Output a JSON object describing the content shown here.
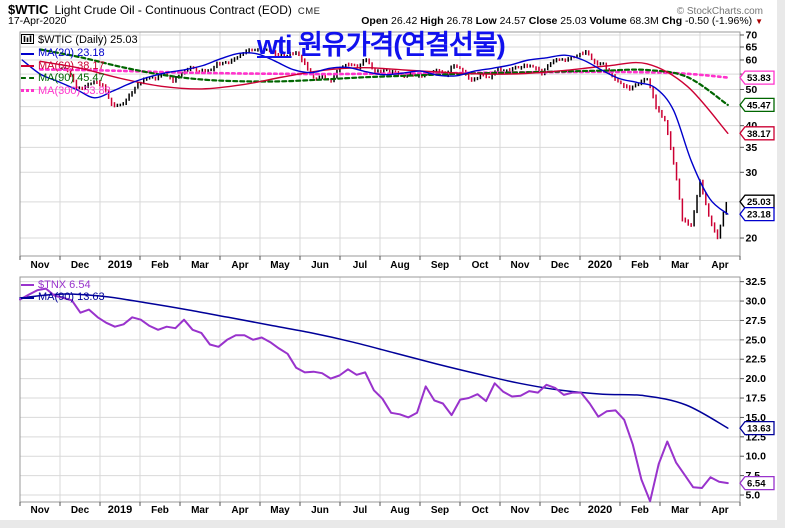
{
  "header": {
    "symbol": "$WTIC",
    "name": "Light Crude Oil - Continuous Contract (EOD)",
    "exchange": "CME",
    "date": "17-Apr-2020",
    "copyright": "© StockCharts.com",
    "quote": [
      {
        "label": "Open",
        "value": "26.42"
      },
      {
        "label": "High",
        "value": "26.78"
      },
      {
        "label": "Low",
        "value": "24.57"
      },
      {
        "label": "Close",
        "value": "25.03"
      },
      {
        "label": "Volume",
        "value": "68.3M"
      },
      {
        "label": "Chg",
        "value": "-0.50 (-1.96%)",
        "direction": "down"
      }
    ]
  },
  "annotation": {
    "text": "wti 원유가격(연결선물)",
    "color": "#1111ee"
  },
  "colors": {
    "grid": "#d9d9d9",
    "border": "#999999",
    "candle_up": "#000000",
    "candle_down": "#cc0033",
    "page_margin": "#e9e9e9"
  },
  "chart_data": [
    {
      "type": "candlestick",
      "title": "$WTIC (Daily) 25.03",
      "scale": "log",
      "ylim": [
        17.9,
        71.3
      ],
      "yticks": [
        20,
        25,
        30,
        35,
        40,
        45,
        50,
        55,
        60,
        65,
        70
      ],
      "ytick_decimals": 0,
      "x_labels": [
        "Nov",
        "Dec",
        "2019",
        "Feb",
        "Mar",
        "Apr",
        "May",
        "Jun",
        "Jul",
        "Aug",
        "Sep",
        "Oct",
        "Nov",
        "Dec",
        "2020",
        "Feb",
        "Mar",
        "Apr"
      ],
      "legend": [
        {
          "label": "$WTIC (Daily) 25.03",
          "color": "#000000",
          "swatch": "icon"
        },
        {
          "label": "MA(20) 23.18",
          "color": "#0000cc",
          "swatch": "line"
        },
        {
          "label": "MA(60) 38.17",
          "color": "#cc0033",
          "swatch": "line"
        },
        {
          "label": "MA(90) 45.47",
          "color": "#006600",
          "swatch": "dash"
        },
        {
          "label": "MA(300) 53.83",
          "color": "#ff33cc",
          "swatch": "dots"
        }
      ],
      "series": [
        {
          "name": "wtic-price-weekly-close",
          "kind": "candles",
          "color_up": "#000000",
          "color_down": "#cc0033",
          "xfrac": [
            0.056,
            0.983
          ],
          "values": [
            57,
            56.5,
            50.4,
            50.9,
            52.6,
            51.2,
            45.6,
            45.3,
            48,
            51.6,
            53.8,
            53.7,
            55.3,
            52.7,
            55.6,
            57.3,
            55.8,
            56.1,
            58.5,
            59,
            60.1,
            63.1,
            63.9,
            64,
            63.3,
            61.9,
            61.7,
            62.8,
            58.6,
            53.5,
            54,
            52.5,
            57.4,
            58.5,
            57.5,
            60.2,
            55.6,
            56.2,
            55.7,
            54.5,
            54.9,
            54.2,
            55.1,
            56.5,
            54.9,
            58.1,
            55.9,
            52.8,
            54.7,
            53.8,
            56.7,
            56.2,
            57.2,
            57.7,
            57.8,
            55.2,
            59.2,
            60.1,
            60.4,
            61.7,
            63.1,
            59,
            58.5,
            54.2,
            51.6,
            50.3,
            52.1,
            53.4,
            44.8,
            41.3,
            31.7,
            22.4,
            21.5,
            28.3,
            22.8,
            19.9,
            25.03
          ]
        },
        {
          "name": "ma300",
          "kind": "line",
          "color": "#ff33cc",
          "width": 2.6,
          "dash": "2.5,3.5",
          "smooth": true,
          "xfrac": [
            0.028,
            0.983
          ],
          "values": [
            56.6,
            56.4,
            56.1,
            55.7,
            55.4,
            55.2,
            55.1,
            55,
            55.1,
            55.2,
            55.3,
            55.45,
            55.6,
            55.7,
            55.75,
            55.6,
            55.1,
            53.83
          ]
        },
        {
          "name": "ma90",
          "kind": "line",
          "color": "#006600",
          "width": 2.2,
          "dash": "4,3",
          "smooth": true,
          "xfrac": [
            0.028,
            0.983
          ],
          "values": [
            64,
            61,
            57.5,
            54.8,
            53.2,
            52.6,
            52.6,
            53.2,
            53.9,
            54.4,
            54.9,
            55.3,
            55.6,
            55.9,
            56.2,
            56.4,
            54,
            45.47
          ]
        },
        {
          "name": "ma60",
          "kind": "line",
          "color": "#cc0033",
          "width": 1.4,
          "smooth": true,
          "xfrac": [
            0.028,
            0.983
          ],
          "values": [
            59.5,
            57,
            53.5,
            51,
            50.2,
            51.5,
            54,
            56.3,
            57.2,
            56.4,
            55.6,
            55,
            55.2,
            56.3,
            57.8,
            58.6,
            51,
            38.17
          ]
        },
        {
          "name": "ma20",
          "kind": "line",
          "color": "#0000cc",
          "width": 1.4,
          "smooth": true,
          "xfrac": [
            0.003,
            0.983
          ],
          "values": [
            60,
            55,
            52.5,
            50,
            47.5,
            49.5,
            52,
            54,
            55.5,
            56.5,
            58,
            60.5,
            62.5,
            62.3,
            59.5,
            56.5,
            55.5,
            57,
            57.3,
            55.8,
            54.8,
            55.3,
            56,
            54.6,
            54.4,
            56,
            57,
            58.2,
            60,
            60.8,
            61.8,
            60,
            56.5,
            53.5,
            52.2,
            50.5,
            44,
            32,
            25.5,
            23.18
          ]
        }
      ],
      "badges": [
        {
          "label": "53.83",
          "value": 53.83,
          "color": "#ff33cc",
          "bold": false
        },
        {
          "label": "45.47",
          "value": 45.47,
          "color": "#006600",
          "bold": false
        },
        {
          "label": "38.17",
          "value": 38.17,
          "color": "#cc0033",
          "bold": false
        },
        {
          "label": "25.03",
          "value": 25.03,
          "color": "#000000",
          "bold": true
        },
        {
          "label": "23.18",
          "value": 23.18,
          "color": "#0000cc",
          "bold": false
        }
      ]
    },
    {
      "type": "line",
      "title": "$TNX 6.54",
      "scale": "linear",
      "ylim": [
        4.1,
        33.1
      ],
      "yticks": [
        5,
        7.5,
        10,
        12.5,
        15,
        17.5,
        20,
        22.5,
        25,
        27.5,
        30,
        32.5
      ],
      "ytick_decimals": 1,
      "x_labels": [
        "Nov",
        "Dec",
        "2019",
        "Feb",
        "Mar",
        "Apr",
        "May",
        "Jun",
        "Jul",
        "Aug",
        "Sep",
        "Oct",
        "Nov",
        "Dec",
        "2020",
        "Feb",
        "Mar",
        "Apr"
      ],
      "legend": [
        {
          "label": "$TNX 6.54",
          "color": "#9933cc",
          "swatch": "line"
        },
        {
          "label": "MA(90) 13.63",
          "color": "#000099",
          "swatch": "line"
        }
      ],
      "series": [
        {
          "name": "tnx-ma90",
          "kind": "line",
          "color": "#000099",
          "width": 1.5,
          "smooth": true,
          "xfrac": [
            0.0,
            0.983
          ],
          "values": [
            30.4,
            30.9,
            30.6,
            29.8,
            28.9,
            27.9,
            26.9,
            25.9,
            24.7,
            23.3,
            21.9,
            20.6,
            19.4,
            18.5,
            18,
            17.8,
            16.6,
            13.63
          ]
        },
        {
          "name": "tnx-yield-weekly",
          "kind": "line",
          "color": "#9933cc",
          "width": 2,
          "smooth": false,
          "xfrac": [
            0.0,
            0.983
          ],
          "values": [
            30.2,
            30.8,
            31.4,
            31.6,
            30.7,
            30.4,
            30.1,
            28.5,
            28.9,
            27.9,
            27.2,
            26.7,
            27,
            27.9,
            27.6,
            26.8,
            26.3,
            26.7,
            26.5,
            27.6,
            26.3,
            25.9,
            24.4,
            24.1,
            25,
            25.6,
            25.6,
            25,
            25.3,
            24.7,
            23.9,
            23.2,
            21.4,
            20.8,
            20.9,
            20.7,
            20,
            20.4,
            21.2,
            20.5,
            20.8,
            18.5,
            17.4,
            15.6,
            15.4,
            15,
            15.6,
            19,
            17.2,
            16.8,
            15.3,
            17.3,
            17.5,
            18,
            17.1,
            19.4,
            18.3,
            17.7,
            17.8,
            18.4,
            18.2,
            19.2,
            18.8,
            17.9,
            18.2,
            18.2,
            16.8,
            15.1,
            15.8,
            15.9,
            14.7,
            11.5,
            7,
            4.2,
            9,
            11.9,
            9.2,
            7.6,
            6,
            5.9,
            7.3,
            6.7,
            6.54
          ]
        }
      ],
      "badges": [
        {
          "label": "13.63",
          "value": 13.63,
          "color": "#000099",
          "bold": false
        },
        {
          "label": "6.54",
          "value": 6.54,
          "color": "#9933cc",
          "bold": true
        }
      ]
    }
  ]
}
